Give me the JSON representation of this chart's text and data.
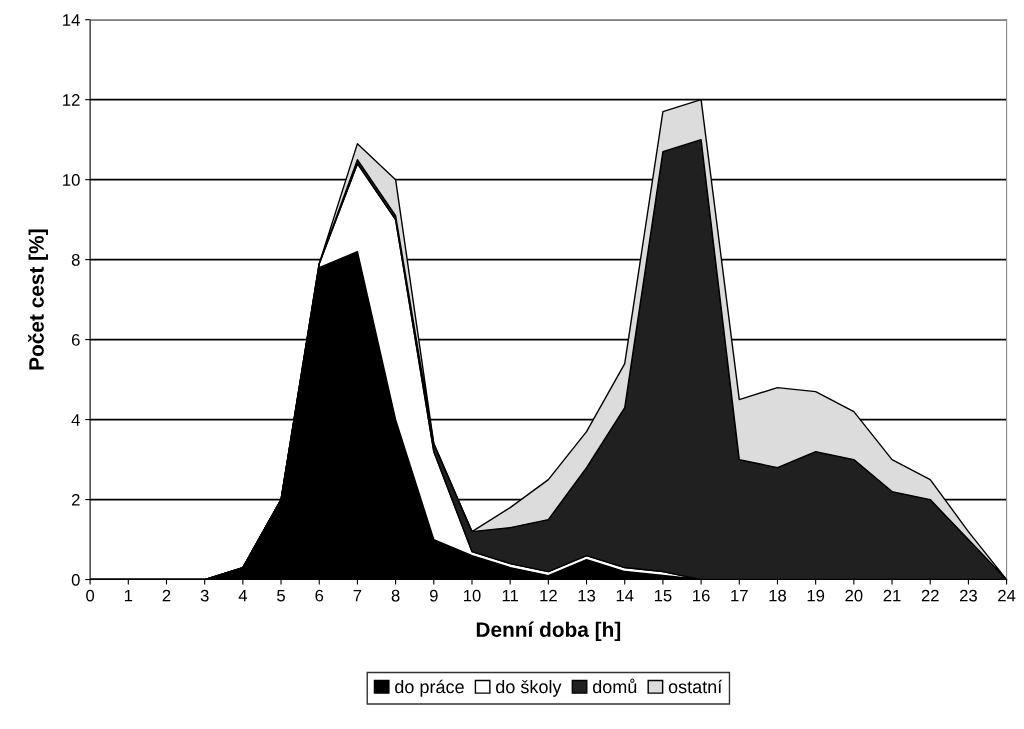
{
  "chart_data": {
    "type": "area",
    "stacked": true,
    "xlabel": "Denní doba [h]",
    "ylabel": "Počet cest [%]",
    "x": [
      0,
      1,
      2,
      3,
      4,
      5,
      6,
      7,
      8,
      9,
      10,
      11,
      12,
      13,
      14,
      15,
      16,
      17,
      18,
      19,
      20,
      21,
      22,
      23,
      24
    ],
    "xlim": [
      0,
      24
    ],
    "xticks": [
      0,
      1,
      2,
      3,
      4,
      5,
      6,
      7,
      8,
      9,
      10,
      11,
      12,
      13,
      14,
      15,
      16,
      17,
      18,
      19,
      20,
      21,
      22,
      23,
      24
    ],
    "ylim": [
      0,
      14
    ],
    "yticks": [
      0,
      2,
      4,
      6,
      8,
      10,
      12,
      14
    ],
    "grid": "y",
    "legend": "bottom",
    "series": [
      {
        "name": "do práce",
        "color": "#000000",
        "values": [
          0,
          0,
          0,
          0,
          0.3,
          2.0,
          7.8,
          8.2,
          4.0,
          1.0,
          0.6,
          0.3,
          0.1,
          0.5,
          0.2,
          0.1,
          0,
          0,
          0,
          0,
          0,
          0,
          0,
          0,
          0
        ]
      },
      {
        "name": "do školy",
        "color": "#ffffff",
        "values": [
          0,
          0,
          0,
          0,
          0,
          0,
          0.1,
          2.2,
          5.0,
          2.2,
          0.1,
          0.1,
          0.1,
          0.1,
          0.1,
          0.1,
          0,
          0,
          0,
          0,
          0,
          0,
          0,
          0,
          0
        ]
      },
      {
        "name": "domů",
        "color": "#202020",
        "values": [
          0,
          0,
          0,
          0,
          0,
          0,
          0,
          0.1,
          0.1,
          0.2,
          0.5,
          0.9,
          1.3,
          2.2,
          4.0,
          10.5,
          11.0,
          3.0,
          2.8,
          3.2,
          3.0,
          2.2,
          2.0,
          1.0,
          0
        ]
      },
      {
        "name": "ostatní",
        "color": "#dcdcdc",
        "values": [
          0,
          0,
          0,
          0,
          0,
          0,
          0,
          0.4,
          0.9,
          0,
          0,
          0.5,
          1.0,
          0.9,
          1.1,
          1.0,
          1.0,
          1.5,
          2.0,
          1.5,
          1.2,
          0.8,
          0.5,
          0.2,
          0
        ]
      }
    ]
  }
}
